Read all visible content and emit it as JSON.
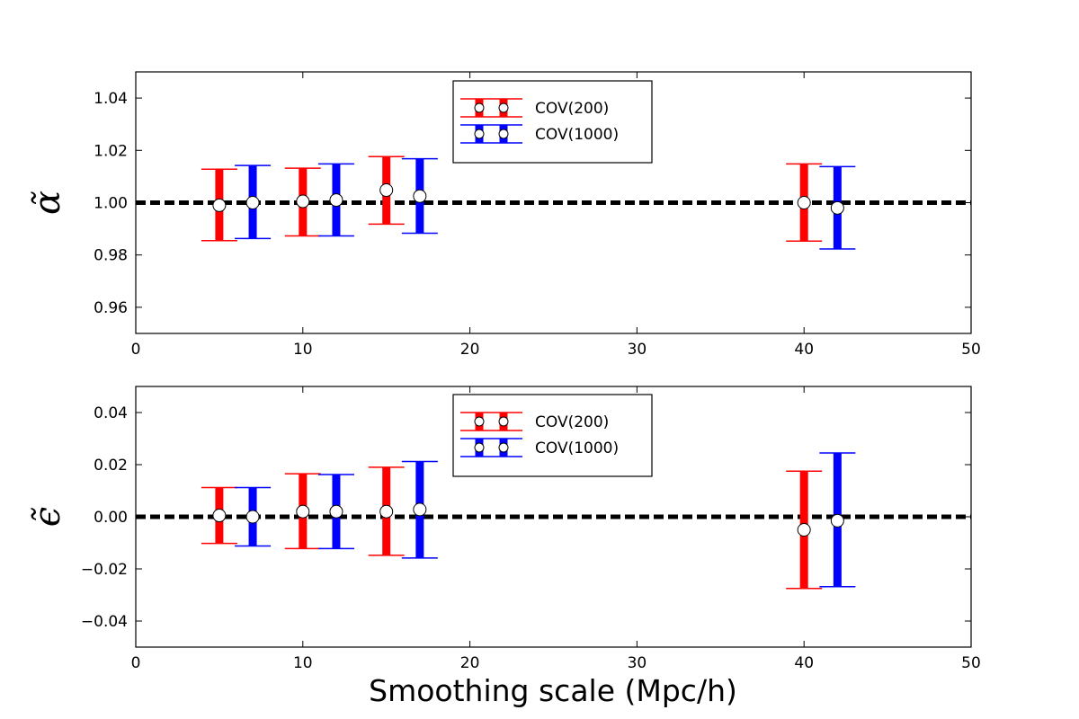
{
  "chart_data": [
    {
      "type": "errorbar",
      "ylabel": "α̃",
      "xlabel": "",
      "xlim": [
        0,
        50
      ],
      "ylim": [
        0.95,
        1.05
      ],
      "xticks": [
        0,
        10,
        20,
        30,
        40,
        50
      ],
      "xtick_labels": [
        "0",
        "10",
        "20",
        "30",
        "40",
        "50"
      ],
      "yticks": [
        0.96,
        0.98,
        1.0,
        1.02,
        1.04
      ],
      "ytick_labels": [
        "0.96",
        "0.98",
        "1.00",
        "1.02",
        "1.04"
      ],
      "reference_line": 1.0,
      "legend_position": "top-center",
      "series": [
        {
          "name": "COV(200)",
          "color": "#ff0000",
          "x": [
            5,
            10,
            15,
            40
          ],
          "y": [
            0.999,
            1.0005,
            1.0048,
            1.0
          ],
          "ylow": [
            0.9855,
            0.9873,
            0.9918,
            0.9853
          ],
          "yhigh": [
            1.0128,
            1.0132,
            1.0176,
            1.0148
          ]
        },
        {
          "name": "COV(1000)",
          "color": "#0000ff",
          "x": [
            7,
            12,
            17,
            42
          ],
          "y": [
            1.0,
            1.001,
            1.0025,
            0.998
          ],
          "ylow": [
            0.9863,
            0.9873,
            0.9883,
            0.9823
          ],
          "yhigh": [
            1.0142,
            1.0148,
            1.0168,
            1.0138
          ]
        }
      ]
    },
    {
      "type": "errorbar",
      "ylabel": "ϵ̃",
      "xlabel": "Smoothing scale (Mpc/h)",
      "xlim": [
        0,
        50
      ],
      "ylim": [
        -0.05,
        0.05
      ],
      "xticks": [
        0,
        10,
        20,
        30,
        40,
        50
      ],
      "xtick_labels": [
        "0",
        "10",
        "20",
        "30",
        "40",
        "50"
      ],
      "yticks": [
        -0.04,
        -0.02,
        0.0,
        0.02,
        0.04
      ],
      "ytick_labels": [
        "−0.04",
        "−0.02",
        "0.00",
        "0.02",
        "0.04"
      ],
      "reference_line": 0.0,
      "legend_position": "top-center",
      "series": [
        {
          "name": "COV(200)",
          "color": "#ff0000",
          "x": [
            5,
            10,
            15,
            40
          ],
          "y": [
            0.0005,
            0.002,
            0.002,
            -0.005
          ],
          "ylow": [
            -0.0102,
            -0.0122,
            -0.0148,
            -0.0275
          ],
          "yhigh": [
            0.0112,
            0.0165,
            0.019,
            0.0175
          ]
        },
        {
          "name": "COV(1000)",
          "color": "#0000ff",
          "x": [
            7,
            12,
            17,
            42
          ],
          "y": [
            0.0,
            0.002,
            0.0028,
            -0.0015
          ],
          "ylow": [
            -0.0112,
            -0.0122,
            -0.0158,
            -0.0268
          ],
          "yhigh": [
            0.0112,
            0.0162,
            0.0212,
            0.0245
          ]
        }
      ]
    }
  ]
}
